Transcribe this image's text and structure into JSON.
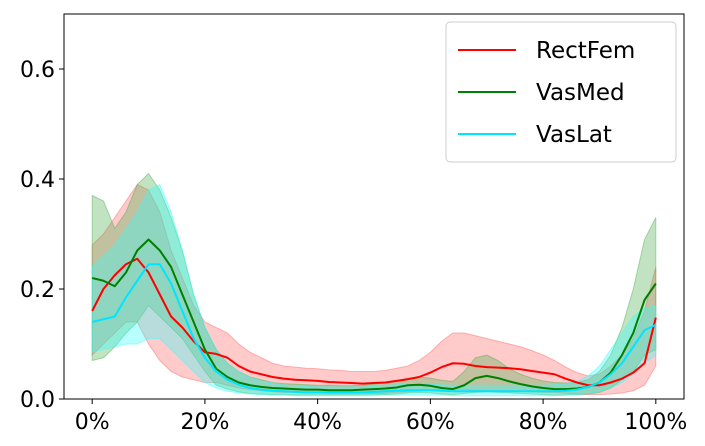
{
  "chart_data": {
    "type": "line",
    "title": "",
    "xlabel": "",
    "ylabel": "",
    "xlim": [
      -5,
      105
    ],
    "ylim": [
      0,
      0.7
    ],
    "x_ticks": [
      0,
      20,
      40,
      60,
      80,
      100
    ],
    "x_tick_labels": [
      "0%",
      "20%",
      "40%",
      "60%",
      "80%",
      "100%"
    ],
    "y_ticks": [
      0.0,
      0.2,
      0.4,
      0.6
    ],
    "y_tick_labels": [
      "0.0",
      "0.2",
      "0.4",
      "0.6"
    ],
    "grid": false,
    "legend_position": "top-right",
    "x": [
      0,
      2,
      4,
      6,
      8,
      10,
      12,
      14,
      16,
      18,
      20,
      22,
      24,
      26,
      28,
      30,
      32,
      34,
      36,
      38,
      40,
      42,
      44,
      46,
      48,
      50,
      52,
      54,
      56,
      58,
      60,
      62,
      64,
      66,
      68,
      70,
      72,
      74,
      76,
      78,
      80,
      82,
      84,
      86,
      88,
      90,
      92,
      94,
      96,
      98,
      100
    ],
    "series": [
      {
        "name": "RectFem",
        "color": "#ff0000",
        "band_color": "#ff6666",
        "mean": [
          0.16,
          0.2,
          0.225,
          0.245,
          0.255,
          0.23,
          0.19,
          0.15,
          0.13,
          0.105,
          0.085,
          0.082,
          0.075,
          0.06,
          0.05,
          0.045,
          0.04,
          0.037,
          0.035,
          0.034,
          0.033,
          0.031,
          0.03,
          0.029,
          0.028,
          0.029,
          0.03,
          0.033,
          0.036,
          0.04,
          0.048,
          0.058,
          0.065,
          0.064,
          0.06,
          0.058,
          0.057,
          0.056,
          0.054,
          0.051,
          0.048,
          0.045,
          0.037,
          0.03,
          0.025,
          0.025,
          0.03,
          0.037,
          0.048,
          0.065,
          0.148
        ],
        "upper": [
          0.28,
          0.3,
          0.33,
          0.36,
          0.39,
          0.38,
          0.34,
          0.27,
          0.22,
          0.17,
          0.14,
          0.13,
          0.12,
          0.1,
          0.085,
          0.075,
          0.065,
          0.06,
          0.058,
          0.056,
          0.055,
          0.053,
          0.052,
          0.05,
          0.05,
          0.05,
          0.052,
          0.056,
          0.06,
          0.07,
          0.085,
          0.105,
          0.12,
          0.12,
          0.115,
          0.11,
          0.105,
          0.1,
          0.095,
          0.088,
          0.08,
          0.07,
          0.058,
          0.048,
          0.042,
          0.045,
          0.06,
          0.08,
          0.11,
          0.16,
          0.24
        ],
        "lower": [
          0.08,
          0.1,
          0.12,
          0.14,
          0.14,
          0.1,
          0.07,
          0.05,
          0.04,
          0.035,
          0.03,
          0.03,
          0.025,
          0.02,
          0.017,
          0.015,
          0.013,
          0.012,
          0.012,
          0.011,
          0.011,
          0.01,
          0.01,
          0.01,
          0.01,
          0.01,
          0.01,
          0.012,
          0.013,
          0.014,
          0.016,
          0.018,
          0.018,
          0.017,
          0.016,
          0.015,
          0.015,
          0.015,
          0.014,
          0.013,
          0.012,
          0.012,
          0.01,
          0.009,
          0.008,
          0.008,
          0.009,
          0.011,
          0.015,
          0.025,
          0.06
        ]
      },
      {
        "name": "VasMed",
        "color": "#008000",
        "band_color": "#4caf50",
        "mean": [
          0.22,
          0.215,
          0.205,
          0.23,
          0.27,
          0.29,
          0.27,
          0.24,
          0.19,
          0.14,
          0.09,
          0.055,
          0.04,
          0.03,
          0.025,
          0.022,
          0.02,
          0.019,
          0.018,
          0.017,
          0.017,
          0.016,
          0.016,
          0.016,
          0.017,
          0.018,
          0.019,
          0.021,
          0.025,
          0.026,
          0.024,
          0.02,
          0.018,
          0.025,
          0.038,
          0.042,
          0.038,
          0.032,
          0.027,
          0.023,
          0.02,
          0.018,
          0.018,
          0.019,
          0.022,
          0.03,
          0.048,
          0.08,
          0.12,
          0.18,
          0.21
        ],
        "upper": [
          0.37,
          0.36,
          0.31,
          0.34,
          0.39,
          0.41,
          0.38,
          0.33,
          0.27,
          0.19,
          0.13,
          0.09,
          0.065,
          0.05,
          0.04,
          0.035,
          0.03,
          0.028,
          0.027,
          0.026,
          0.025,
          0.025,
          0.024,
          0.024,
          0.025,
          0.027,
          0.03,
          0.033,
          0.038,
          0.04,
          0.038,
          0.034,
          0.032,
          0.05,
          0.075,
          0.08,
          0.07,
          0.055,
          0.045,
          0.038,
          0.033,
          0.03,
          0.029,
          0.03,
          0.035,
          0.05,
          0.08,
          0.13,
          0.2,
          0.29,
          0.33
        ],
        "lower": [
          0.07,
          0.075,
          0.095,
          0.12,
          0.14,
          0.17,
          0.15,
          0.13,
          0.11,
          0.08,
          0.05,
          0.025,
          0.018,
          0.013,
          0.01,
          0.009,
          0.008,
          0.008,
          0.007,
          0.007,
          0.007,
          0.007,
          0.007,
          0.007,
          0.007,
          0.008,
          0.008,
          0.009,
          0.011,
          0.012,
          0.011,
          0.009,
          0.008,
          0.01,
          0.012,
          0.013,
          0.012,
          0.011,
          0.01,
          0.009,
          0.008,
          0.007,
          0.007,
          0.008,
          0.009,
          0.012,
          0.02,
          0.035,
          0.05,
          0.08,
          0.09
        ]
      },
      {
        "name": "VasLat",
        "color": "#00e5ff",
        "band_color": "#33ffff",
        "mean": [
          0.14,
          0.145,
          0.15,
          0.185,
          0.215,
          0.245,
          0.245,
          0.21,
          0.16,
          0.11,
          0.075,
          0.05,
          0.035,
          0.026,
          0.02,
          0.017,
          0.015,
          0.014,
          0.013,
          0.012,
          0.012,
          0.012,
          0.012,
          0.012,
          0.012,
          0.013,
          0.014,
          0.015,
          0.016,
          0.016,
          0.016,
          0.015,
          0.014,
          0.014,
          0.014,
          0.014,
          0.014,
          0.014,
          0.014,
          0.014,
          0.014,
          0.014,
          0.015,
          0.017,
          0.022,
          0.03,
          0.045,
          0.065,
          0.095,
          0.125,
          0.135
        ],
        "upper": [
          0.24,
          0.26,
          0.28,
          0.31,
          0.34,
          0.38,
          0.39,
          0.34,
          0.27,
          0.19,
          0.13,
          0.09,
          0.065,
          0.05,
          0.04,
          0.033,
          0.029,
          0.026,
          0.024,
          0.023,
          0.022,
          0.022,
          0.022,
          0.022,
          0.022,
          0.023,
          0.025,
          0.026,
          0.028,
          0.028,
          0.027,
          0.026,
          0.025,
          0.025,
          0.025,
          0.025,
          0.025,
          0.025,
          0.025,
          0.025,
          0.025,
          0.026,
          0.028,
          0.032,
          0.042,
          0.06,
          0.09,
          0.12,
          0.15,
          0.165,
          0.17
        ],
        "lower": [
          0.085,
          0.09,
          0.095,
          0.1,
          0.1,
          0.11,
          0.11,
          0.09,
          0.07,
          0.05,
          0.03,
          0.02,
          0.014,
          0.011,
          0.009,
          0.008,
          0.007,
          0.007,
          0.006,
          0.006,
          0.006,
          0.006,
          0.006,
          0.006,
          0.006,
          0.006,
          0.007,
          0.007,
          0.007,
          0.007,
          0.007,
          0.007,
          0.006,
          0.006,
          0.006,
          0.006,
          0.006,
          0.006,
          0.006,
          0.006,
          0.006,
          0.006,
          0.007,
          0.008,
          0.01,
          0.013,
          0.02,
          0.03,
          0.045,
          0.065,
          0.08
        ]
      }
    ]
  }
}
